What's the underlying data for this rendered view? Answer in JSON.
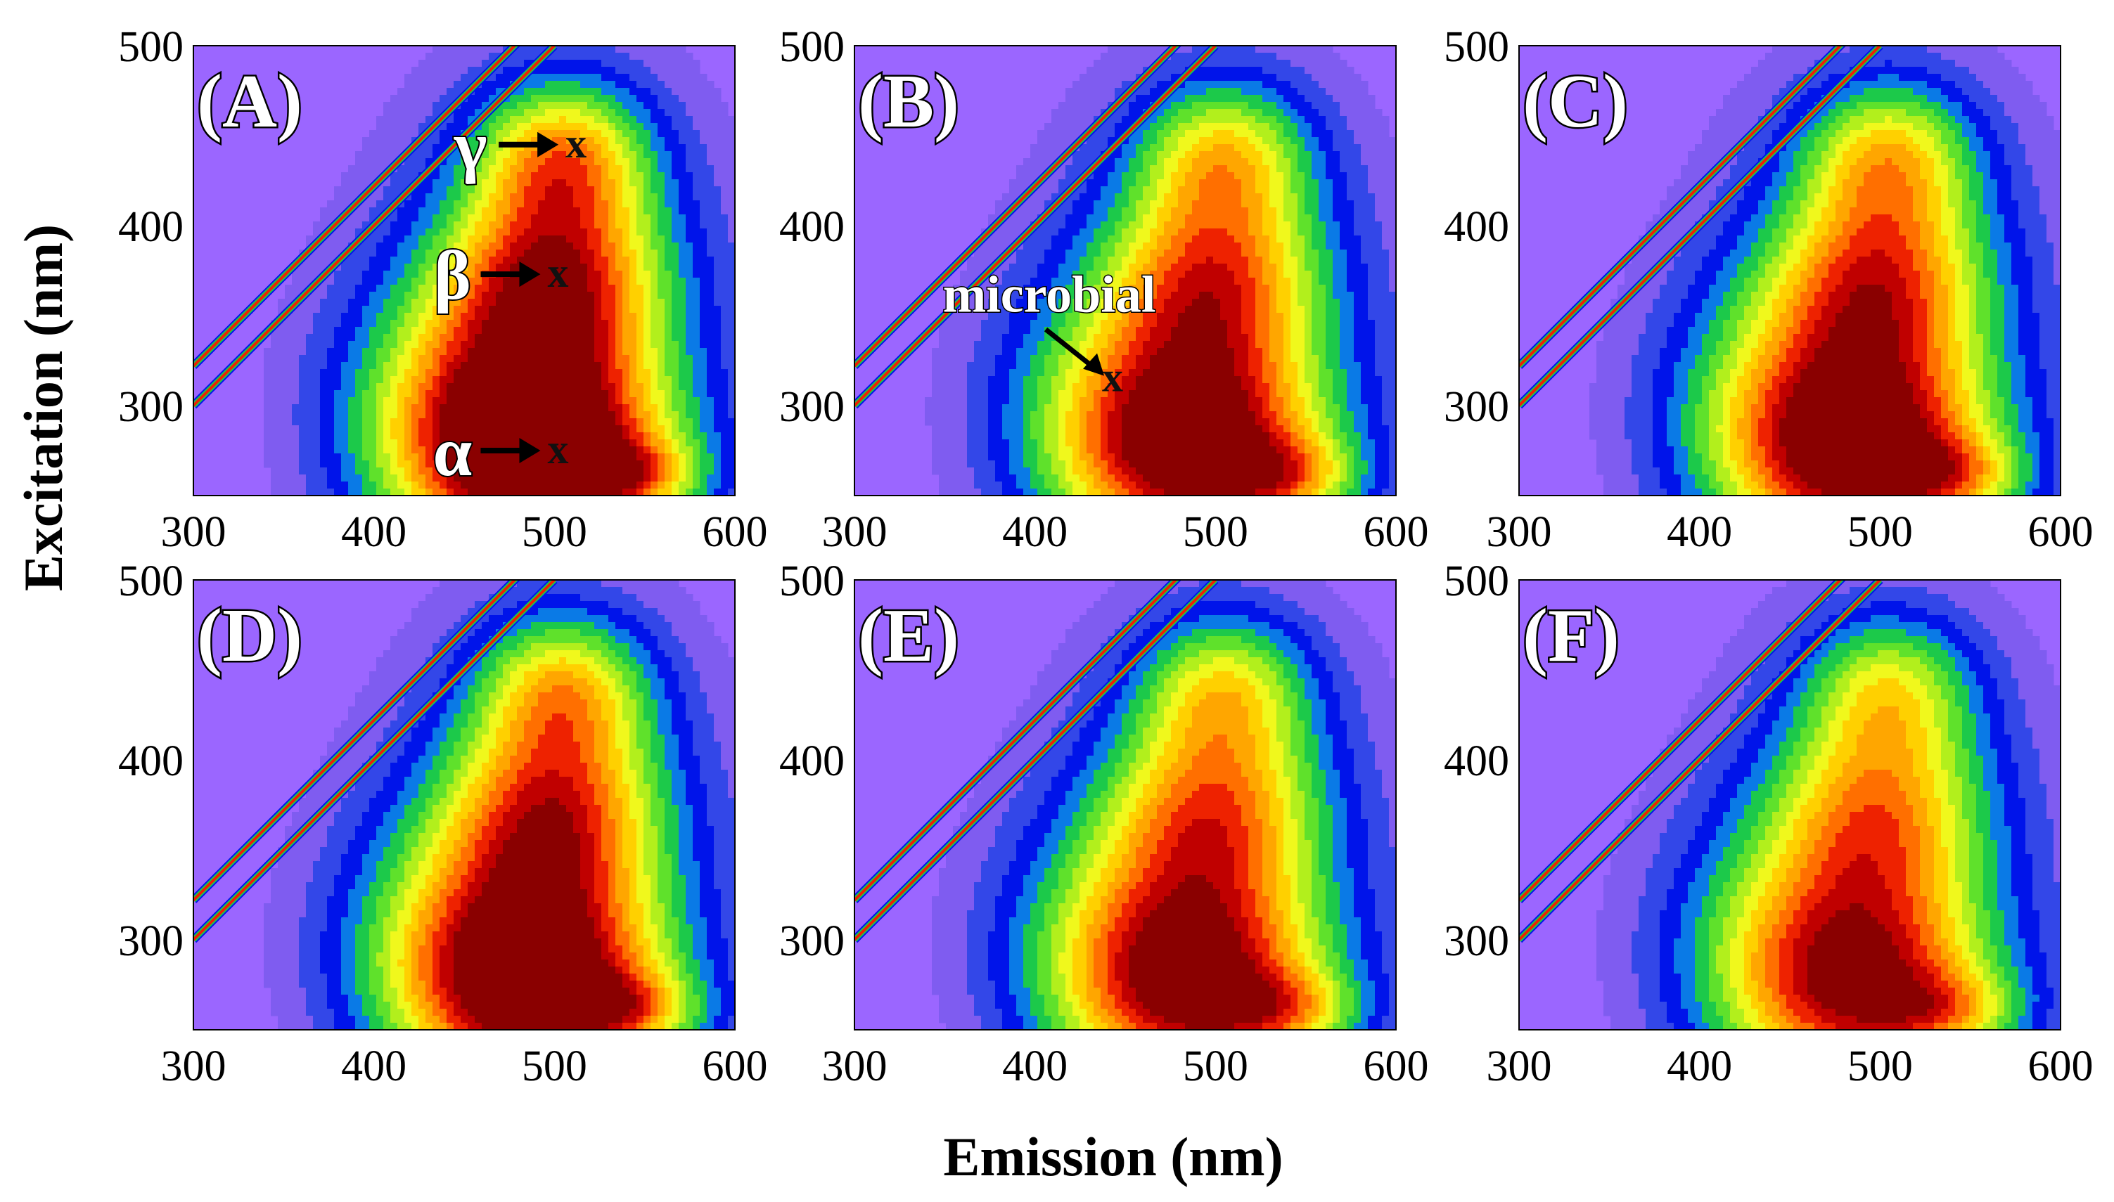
{
  "chart_data": {
    "type": "heatmap",
    "description_type": "EEM contour plots",
    "xlabel": "Emission (nm)",
    "ylabel": "Excitation (nm)",
    "xlim": [
      300,
      600
    ],
    "ylim": [
      250,
      500
    ],
    "x_ticks": [
      "300",
      "400",
      "500",
      "600"
    ],
    "y_ticks": [
      "300",
      "400",
      "500"
    ],
    "panels": [
      {
        "label": "(A)",
        "peak_scale": 1.15,
        "annotations": [
          {
            "symbol": "γ",
            "mark": "x",
            "em": 512,
            "ex": 445
          },
          {
            "symbol": "β",
            "mark": "x",
            "em": 502,
            "ex": 373
          },
          {
            "symbol": "α",
            "mark": "x",
            "em": 502,
            "ex": 275
          }
        ]
      },
      {
        "label": "(B)",
        "peak_scale": 1.0,
        "annotations": [
          {
            "symbol": "microbial",
            "mark": "x",
            "em": 443,
            "ex": 315
          }
        ]
      },
      {
        "label": "(C)",
        "peak_scale": 1.02,
        "annotations": []
      },
      {
        "label": "(D)",
        "peak_scale": 1.06,
        "annotations": []
      },
      {
        "label": "(E)",
        "peak_scale": 0.95,
        "annotations": []
      },
      {
        "label": "(F)",
        "peak_scale": 0.9,
        "annotations": []
      }
    ],
    "colors": [
      "#9b66ff",
      "#7f5cf0",
      "#3347e8",
      "#0014ea",
      "#0a7ae6",
      "#1cc94a",
      "#5fe12b",
      "#b2ef1c",
      "#f0f81c",
      "#ffd000",
      "#ffa600",
      "#ff6f00",
      "#ee2200",
      "#c00000",
      "#8a0000"
    ]
  }
}
